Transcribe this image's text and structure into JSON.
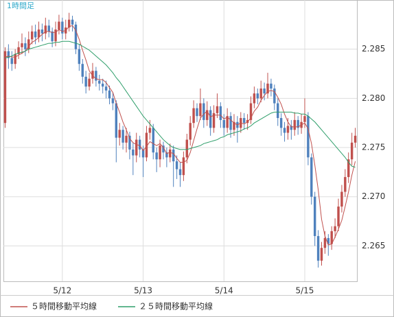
{
  "chart_data": {
    "type": "candlestick",
    "title": "1時間足",
    "categories": [
      null,
      null,
      null,
      null,
      null,
      null,
      null,
      null,
      null,
      null,
      null,
      null,
      null,
      null,
      null,
      null,
      null,
      "5/12",
      null,
      null,
      null,
      null,
      null,
      null,
      null,
      null,
      null,
      null,
      null,
      null,
      null,
      null,
      null,
      null,
      null,
      null,
      null,
      null,
      null,
      null,
      null,
      "5/13",
      null,
      null,
      null,
      null,
      null,
      null,
      null,
      null,
      null,
      null,
      null,
      null,
      null,
      null,
      null,
      null,
      null,
      null,
      null,
      null,
      null,
      null,
      null,
      "5/14",
      null,
      null,
      null,
      null,
      null,
      null,
      null,
      null,
      null,
      null,
      null,
      null,
      null,
      null,
      null,
      null,
      null,
      null,
      null,
      null,
      null,
      null,
      null,
      "5/15",
      null,
      null,
      null,
      null,
      null,
      null,
      null,
      null,
      null,
      null,
      null,
      null,
      null,
      null,
      null
    ],
    "open": [
      2.2775,
      2.2848,
      2.2841,
      2.2835,
      2.2845,
      2.2852,
      2.2856,
      2.285,
      2.286,
      2.2868,
      2.2862,
      2.287,
      2.2866,
      2.2874,
      2.2868,
      2.2858,
      2.287,
      2.2878,
      2.2866,
      2.2872,
      2.288,
      2.2875,
      2.285,
      2.2835,
      2.2822,
      2.2812,
      2.282,
      2.2828,
      2.2818,
      2.2815,
      2.2812,
      2.2808,
      2.28,
      2.2795,
      2.276,
      2.2768,
      2.2755,
      2.2762,
      2.2748,
      2.2742,
      2.2758,
      2.2748,
      2.274,
      2.2765,
      2.277,
      2.2745,
      2.2738,
      2.2752,
      2.2745,
      2.274,
      2.2748,
      2.2736,
      2.2728,
      2.2722,
      2.274,
      2.2758,
      2.2775,
      2.279,
      2.2782,
      2.2795,
      2.2778,
      2.2788,
      2.277,
      2.2785,
      2.2792,
      2.2778,
      2.277,
      2.2782,
      2.2768,
      2.2776,
      2.277,
      2.278,
      2.2775,
      2.2778,
      2.2795,
      2.2805,
      2.28,
      2.281,
      2.2805,
      2.2815,
      2.281,
      2.2795,
      2.278,
      2.277,
      2.2765,
      2.2772,
      2.2768,
      2.2778,
      2.277,
      2.2776,
      2.2782,
      2.274,
      2.27,
      2.266,
      2.2635,
      2.2648,
      2.2658,
      2.2652,
      2.2665,
      2.267,
      2.269,
      2.2705,
      2.272,
      2.2738,
      2.2755
    ],
    "high": [
      2.2852,
      2.2855,
      2.2848,
      2.285,
      2.2858,
      2.2866,
      2.2862,
      2.2868,
      2.2874,
      2.2875,
      2.2878,
      2.2876,
      2.2882,
      2.288,
      2.2872,
      2.2878,
      2.2885,
      2.2882,
      2.288,
      2.2887,
      2.2884,
      2.2878,
      2.2855,
      2.284,
      2.2828,
      2.2826,
      2.2836,
      2.2832,
      2.2824,
      2.282,
      2.2818,
      2.2813,
      2.2806,
      2.2798,
      2.2775,
      2.2772,
      2.277,
      2.2766,
      2.2755,
      2.2765,
      2.2762,
      2.2752,
      2.2772,
      2.2778,
      2.2774,
      2.275,
      2.2758,
      2.2756,
      2.275,
      2.2754,
      2.2752,
      2.2742,
      2.2735,
      2.2746,
      2.2764,
      2.2782,
      2.2798,
      2.2795,
      2.281,
      2.28,
      2.2797,
      2.2792,
      2.2793,
      2.2805,
      2.2796,
      2.2784,
      2.279,
      2.2786,
      2.2784,
      2.2782,
      2.2786,
      2.2785,
      2.2784,
      2.2802,
      2.2812,
      2.281,
      2.2818,
      2.2816,
      2.2826,
      2.282,
      2.2814,
      2.28,
      2.2785,
      2.2776,
      2.278,
      2.2778,
      2.2786,
      2.2782,
      2.2784,
      2.28,
      2.2786,
      2.2744,
      2.2705,
      2.2666,
      2.2654,
      2.2665,
      2.2662,
      2.267,
      2.2678,
      2.2698,
      2.2712,
      2.2728,
      2.2745,
      2.2765,
      2.277
    ],
    "low": [
      2.277,
      2.283,
      2.2828,
      2.283,
      2.284,
      2.2845,
      2.2843,
      2.2846,
      2.2855,
      2.2855,
      2.2857,
      2.2858,
      2.286,
      2.2862,
      2.2852,
      2.2853,
      2.2865,
      2.286,
      2.286,
      2.2868,
      2.2868,
      2.2845,
      2.2828,
      2.2815,
      2.2805,
      2.2808,
      2.2815,
      2.2812,
      2.2808,
      2.2805,
      2.28,
      2.2794,
      2.2788,
      2.2735,
      2.2752,
      2.2748,
      2.2745,
      2.2738,
      2.2722,
      2.2735,
      2.274,
      2.272,
      2.2736,
      2.2758,
      2.2738,
      2.2725,
      2.273,
      2.2738,
      2.273,
      2.2735,
      2.271,
      2.2718,
      2.271,
      2.2716,
      2.2734,
      2.2752,
      2.277,
      2.2776,
      2.2778,
      2.277,
      2.2772,
      2.2762,
      2.2765,
      2.278,
      2.277,
      2.2762,
      2.2765,
      2.276,
      2.2762,
      2.2755,
      2.2765,
      2.2768,
      2.2768,
      2.2774,
      2.279,
      2.2794,
      2.2796,
      2.2798,
      2.28,
      2.2802,
      2.2788,
      2.2772,
      2.2762,
      2.2756,
      2.2758,
      2.2758,
      2.2762,
      2.2763,
      2.2764,
      2.277,
      2.2732,
      2.2692,
      2.265,
      2.2628,
      2.263,
      2.2642,
      2.264,
      2.2646,
      2.2658,
      2.2665,
      2.2684,
      2.27,
      2.2714,
      2.2732,
      2.275
    ],
    "close": [
      2.2848,
      2.2841,
      2.2835,
      2.2845,
      2.2852,
      2.2856,
      2.285,
      2.286,
      2.2868,
      2.2862,
      2.287,
      2.2866,
      2.2874,
      2.2868,
      2.2858,
      2.287,
      2.2878,
      2.2866,
      2.2872,
      2.288,
      2.2875,
      2.285,
      2.2835,
      2.2822,
      2.2812,
      2.282,
      2.2828,
      2.2818,
      2.2815,
      2.2812,
      2.2808,
      2.28,
      2.2795,
      2.276,
      2.2768,
      2.2755,
      2.2762,
      2.2748,
      2.2742,
      2.2758,
      2.2748,
      2.274,
      2.2765,
      2.277,
      2.2745,
      2.2738,
      2.2752,
      2.2745,
      2.274,
      2.2748,
      2.2736,
      2.2728,
      2.2722,
      2.274,
      2.2758,
      2.2775,
      2.279,
      2.2782,
      2.2795,
      2.2778,
      2.2788,
      2.277,
      2.2785,
      2.2792,
      2.2778,
      2.277,
      2.2782,
      2.2768,
      2.2776,
      2.277,
      2.278,
      2.2775,
      2.2778,
      2.2795,
      2.2805,
      2.28,
      2.281,
      2.2805,
      2.2815,
      2.281,
      2.2795,
      2.278,
      2.277,
      2.2765,
      2.2772,
      2.2768,
      2.2778,
      2.277,
      2.2776,
      2.2782,
      2.274,
      2.27,
      2.266,
      2.2635,
      2.2648,
      2.2658,
      2.2652,
      2.2665,
      2.267,
      2.269,
      2.2705,
      2.272,
      2.2738,
      2.2755,
      2.2762
    ],
    "up_color": "#c0504d",
    "down_color": "#4f81bd",
    "series": [
      {
        "name": "５時間移動平均線",
        "color": "#c0504d",
        "values": [
          2.2842,
          2.2843,
          2.2842,
          2.2842,
          2.2844,
          2.2846,
          2.2848,
          2.2853,
          2.2857,
          2.2859,
          2.2862,
          2.2865,
          2.2868,
          2.2868,
          2.2867,
          2.2867,
          2.287,
          2.2868,
          2.2869,
          2.2873,
          2.2874,
          2.2869,
          2.286,
          2.2849,
          2.2839,
          2.2828,
          2.2823,
          2.282,
          2.2819,
          2.2819,
          2.2816,
          2.2811,
          2.2806,
          2.2795,
          2.2786,
          2.2776,
          2.2768,
          2.2759,
          2.2755,
          2.2753,
          2.2752,
          2.2747,
          2.2751,
          2.2756,
          2.2754,
          2.2752,
          2.2754,
          2.275,
          2.2744,
          2.2745,
          2.2744,
          2.2739,
          2.2735,
          2.2735,
          2.2737,
          2.2745,
          2.2757,
          2.2769,
          2.278,
          2.2784,
          2.2787,
          2.2781,
          2.2783,
          2.2783,
          2.2783,
          2.2779,
          2.2781,
          2.2778,
          2.2775,
          2.2773,
          2.2775,
          2.2774,
          2.2776,
          2.278,
          2.2787,
          2.2791,
          2.2798,
          2.2803,
          2.2807,
          2.2808,
          2.2807,
          2.2801,
          2.2794,
          2.2784,
          2.2776,
          2.2771,
          2.2771,
          2.2771,
          2.2773,
          2.2775,
          2.2769,
          2.2754,
          2.2732,
          2.2707,
          2.2677,
          2.266,
          2.2651,
          2.2652,
          2.2659,
          2.2667,
          2.2676,
          2.269,
          2.2705,
          2.2722,
          2.2736
        ]
      },
      {
        "name": "２５時間移動平均線",
        "color": "#2e9e6a",
        "values": [
          2.2841,
          2.2842,
          2.2843,
          2.2845,
          2.2846,
          2.2847,
          2.2848,
          2.285,
          2.2851,
          2.2852,
          2.2853,
          2.2854,
          2.2855,
          2.2856,
          2.2856,
          2.2857,
          2.2857,
          2.2858,
          2.2858,
          2.2858,
          2.2857,
          2.2856,
          2.2855,
          2.2853,
          2.2851,
          2.2849,
          2.2846,
          2.2843,
          2.284,
          2.2837,
          2.2834,
          2.283,
          2.2826,
          2.2821,
          2.2817,
          2.2812,
          2.2807,
          2.2802,
          2.2797,
          2.2792,
          2.2787,
          2.2782,
          2.2778,
          2.2774,
          2.277,
          2.2766,
          2.2762,
          2.2758,
          2.2755,
          2.2752,
          2.275,
          2.2749,
          2.2748,
          2.2748,
          2.2748,
          2.2749,
          2.275,
          2.2751,
          2.2752,
          2.2754,
          2.2755,
          2.2756,
          2.2757,
          2.2758,
          2.276,
          2.2761,
          2.2763,
          2.2764,
          2.2765,
          2.2766,
          2.2767,
          2.2769,
          2.277,
          2.2772,
          2.2775,
          2.2777,
          2.2779,
          2.2781,
          2.2783,
          2.2785,
          2.2786,
          2.2786,
          2.2786,
          2.2786,
          2.2786,
          2.2786,
          2.2785,
          2.2785,
          2.2784,
          2.2784,
          2.2782,
          2.2779,
          2.2776,
          2.2772,
          2.2768,
          2.2764,
          2.276,
          2.2756,
          2.2752,
          2.2748,
          2.2744,
          2.274,
          2.2735,
          2.2731,
          2.273
        ]
      }
    ],
    "ylim": [
      2.2614,
      2.29
    ],
    "yticks": [
      2.265,
      {
        "value": 2.27,
        "label": "2.270"
      },
      2.275,
      {
        "value": 2.28,
        "label": "2.280"
      },
      2.285
    ],
    "grid": true
  }
}
